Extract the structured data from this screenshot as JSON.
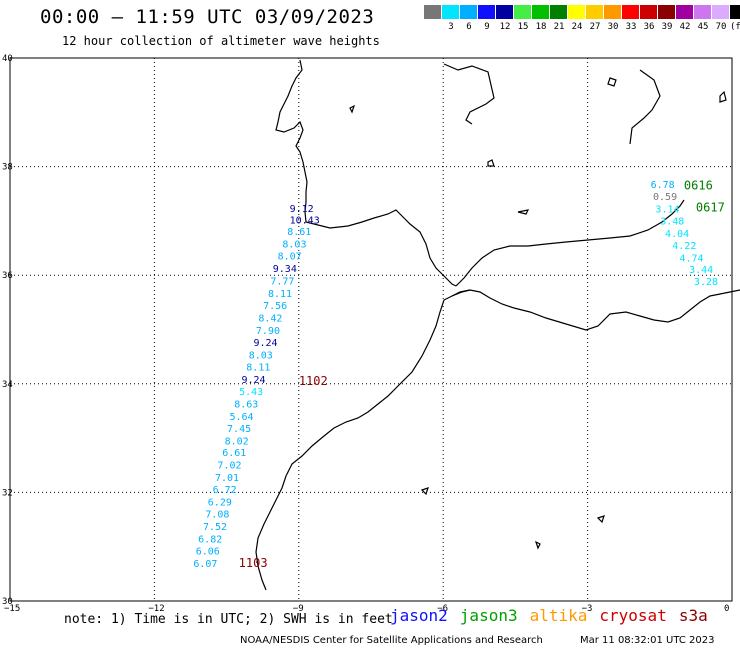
{
  "title": "00:00 – 11:59 UTC 03/09/2023",
  "subtitle": "12 hour collection of altimeter wave heights",
  "scale": {
    "colors": [
      "#777777",
      "#00e5ff",
      "#00b0ff",
      "#1010ff",
      "#0000a0",
      "#44ee44",
      "#00c000",
      "#008000",
      "#ffff00",
      "#ffcc00",
      "#ff9900",
      "#ff0000",
      "#cc0000",
      "#8b0000",
      "#a000a0",
      "#cc77ee",
      "#ddaaff",
      "#000000"
    ],
    "labels": [
      "",
      "3",
      "6",
      "9",
      "12",
      "15",
      "18",
      "21",
      "24",
      "27",
      "30",
      "33",
      "36",
      "39",
      "42",
      "45",
      "70",
      "(ft)"
    ]
  },
  "axes": {
    "lat_ticks": [
      "40",
      "38",
      "36",
      "34",
      "32",
      "30"
    ],
    "lon_ticks": [
      "−15",
      "−12",
      "−9",
      "−6",
      "−3",
      "0"
    ]
  },
  "observations": [
    {
      "lon": -8.9,
      "lat": 37.24,
      "text": "9.12",
      "color": "#0000a0"
    },
    {
      "lon": -8.9,
      "lat": 37.03,
      "text": "10.43",
      "color": "#0000a0"
    },
    {
      "lon": -8.95,
      "lat": 36.81,
      "text": "8.61",
      "color": "#00b0ff"
    },
    {
      "lon": -9.05,
      "lat": 36.58,
      "text": "8.03",
      "color": "#00b0ff"
    },
    {
      "lon": -9.15,
      "lat": 36.36,
      "text": "8.07",
      "color": "#00b0ff"
    },
    {
      "lon": -9.25,
      "lat": 36.13,
      "text": "9.34",
      "color": "#0000a0"
    },
    {
      "lon": -9.3,
      "lat": 35.9,
      "text": "7.77",
      "color": "#00b0ff"
    },
    {
      "lon": -9.35,
      "lat": 35.67,
      "text": "8.11",
      "color": "#00b0ff"
    },
    {
      "lon": -9.45,
      "lat": 35.45,
      "text": "7.56",
      "color": "#00b0ff"
    },
    {
      "lon": -9.55,
      "lat": 35.22,
      "text": "8.42",
      "color": "#00b0ff"
    },
    {
      "lon": -9.6,
      "lat": 34.99,
      "text": "7.90",
      "color": "#00b0ff"
    },
    {
      "lon": -9.65,
      "lat": 34.77,
      "text": "9.24",
      "color": "#0000a0"
    },
    {
      "lon": -9.75,
      "lat": 34.54,
      "text": "8.03",
      "color": "#00b0ff"
    },
    {
      "lon": -9.8,
      "lat": 34.32,
      "text": "8.11",
      "color": "#00b0ff"
    },
    {
      "lon": -9.9,
      "lat": 34.09,
      "text": "9.24",
      "color": "#0000a0"
    },
    {
      "lon": -9.95,
      "lat": 33.87,
      "text": "5.43",
      "color": "#00e5ff"
    },
    {
      "lon": -10.05,
      "lat": 33.64,
      "text": "8.63",
      "color": "#00b0ff"
    },
    {
      "lon": -10.15,
      "lat": 33.41,
      "text": "5.64",
      "color": "#00b0ff"
    },
    {
      "lon": -10.2,
      "lat": 33.19,
      "text": "7.45",
      "color": "#00b0ff"
    },
    {
      "lon": -10.25,
      "lat": 32.96,
      "text": "8.02",
      "color": "#00b0ff"
    },
    {
      "lon": -10.3,
      "lat": 32.74,
      "text": "6.61",
      "color": "#00b0ff"
    },
    {
      "lon": -10.4,
      "lat": 32.51,
      "text": "7.02",
      "color": "#00b0ff"
    },
    {
      "lon": -10.45,
      "lat": 32.28,
      "text": "7.01",
      "color": "#00b0ff"
    },
    {
      "lon": -10.5,
      "lat": 32.06,
      "text": "6.72",
      "color": "#00b0ff"
    },
    {
      "lon": -10.6,
      "lat": 31.83,
      "text": "6.29",
      "color": "#00b0ff"
    },
    {
      "lon": -10.65,
      "lat": 31.61,
      "text": "7.08",
      "color": "#00b0ff"
    },
    {
      "lon": -10.7,
      "lat": 31.38,
      "text": "7.52",
      "color": "#00b0ff"
    },
    {
      "lon": -10.8,
      "lat": 31.15,
      "text": "6.82",
      "color": "#00b0ff"
    },
    {
      "lon": -10.85,
      "lat": 30.93,
      "text": "6.06",
      "color": "#00b0ff"
    },
    {
      "lon": -10.9,
      "lat": 30.7,
      "text": "6.07",
      "color": "#00b0ff"
    },
    {
      "lon": -1.4,
      "lat": 37.68,
      "text": "6.78",
      "color": "#00b0ff"
    },
    {
      "lon": -1.35,
      "lat": 37.46,
      "text": "0.59",
      "color": "#777777"
    },
    {
      "lon": -1.3,
      "lat": 37.23,
      "text": "3.14",
      "color": "#00e5ff"
    },
    {
      "lon": -1.2,
      "lat": 37.01,
      "text": "3.48",
      "color": "#00e5ff"
    },
    {
      "lon": -1.1,
      "lat": 36.78,
      "text": "4.04",
      "color": "#00e5ff"
    },
    {
      "lon": -0.95,
      "lat": 36.56,
      "text": "4.22",
      "color": "#00e5ff"
    },
    {
      "lon": -0.8,
      "lat": 36.33,
      "text": "4.74",
      "color": "#00e5ff"
    },
    {
      "lon": -0.6,
      "lat": 36.11,
      "text": "3.44",
      "color": "#00e5ff"
    },
    {
      "lon": -0.5,
      "lat": 35.89,
      "text": "3.28",
      "color": "#00e5ff"
    }
  ],
  "time_stamps": [
    {
      "lon": -8.75,
      "lat": 34.05,
      "text": "1102",
      "color": "#8b0000"
    },
    {
      "lon": -10.0,
      "lat": 30.7,
      "text": "1103",
      "color": "#8b0000"
    },
    {
      "lon": -0.75,
      "lat": 37.65,
      "text": "0616",
      "color": "#008000"
    },
    {
      "lon": -0.5,
      "lat": 37.25,
      "text": "0617",
      "color": "#008000"
    }
  ],
  "note": "note: 1) Time is in UTC; 2) SWH is in feet",
  "legend": [
    {
      "label": "jason2",
      "color": "#1010ff"
    },
    {
      "label": "jason3",
      "color": "#00a000"
    },
    {
      "label": "altika",
      "color": "#ff9900"
    },
    {
      "label": "cryosat",
      "color": "#cc0000"
    },
    {
      "label": "s3a",
      "color": "#8b0000"
    }
  ],
  "footer": {
    "source": "NOAA/NESDIS Center for Satellite Applications and Research",
    "timestamp": "Mar 11 08:32:01 UTC 2023"
  }
}
